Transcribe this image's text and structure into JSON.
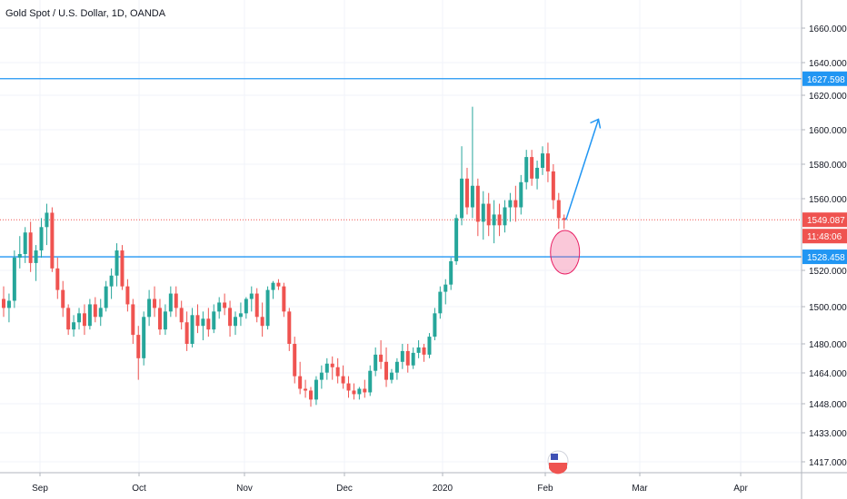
{
  "header": {
    "symbol_title": "Gold Spot / U.S. Dollar, 1D, OANDA"
  },
  "colors": {
    "up": "#26a69a",
    "down": "#ef5350",
    "level_line": "#2196f3",
    "price_line": "#ef5350",
    "grid": "#f0f3fa",
    "axis_text": "#131722"
  },
  "chart_data": {
    "type": "candlestick",
    "title": "Gold Spot / U.S. Dollar, 1D, OANDA",
    "x_ticks": [
      "Sep",
      "Oct",
      "Nov",
      "Dec",
      "2020",
      "Feb",
      "Mar",
      "Apr"
    ],
    "y_ticks": [
      "1660.000",
      "1640.000",
      "1620.000",
      "1600.000",
      "1580.000",
      "1560.000",
      "1520.000",
      "1500.000",
      "1480.000",
      "1464.000",
      "1448.000",
      "1433.000",
      "1417.000"
    ],
    "price_labels": [
      {
        "value": "1627.598",
        "kind": "level"
      },
      {
        "value": "1549.087",
        "kind": "last"
      },
      {
        "value": "11:48:06",
        "kind": "countdown"
      },
      {
        "value": "1528.458",
        "kind": "level"
      }
    ],
    "horizontal_levels": [
      1627.598,
      1528.458
    ],
    "last_price": 1549.087,
    "candles": [
      [
        1505,
        1512,
        1495,
        1500
      ],
      [
        1500,
        1508,
        1492,
        1504
      ],
      [
        1504,
        1532,
        1500,
        1528
      ],
      [
        1528,
        1540,
        1522,
        1530
      ],
      [
        1530,
        1545,
        1525,
        1542
      ],
      [
        1542,
        1548,
        1520,
        1525
      ],
      [
        1525,
        1535,
        1515,
        1532
      ],
      [
        1532,
        1550,
        1528,
        1545
      ],
      [
        1545,
        1558,
        1535,
        1553
      ],
      [
        1553,
        1556,
        1520,
        1522
      ],
      [
        1522,
        1528,
        1505,
        1510
      ],
      [
        1510,
        1515,
        1495,
        1500
      ],
      [
        1500,
        1502,
        1485,
        1488
      ],
      [
        1488,
        1496,
        1484,
        1492
      ],
      [
        1492,
        1500,
        1488,
        1497
      ],
      [
        1497,
        1502,
        1485,
        1490
      ],
      [
        1490,
        1505,
        1488,
        1502
      ],
      [
        1502,
        1506,
        1492,
        1495
      ],
      [
        1495,
        1505,
        1490,
        1500
      ],
      [
        1500,
        1515,
        1498,
        1512
      ],
      [
        1512,
        1522,
        1505,
        1518
      ],
      [
        1518,
        1536,
        1512,
        1532
      ],
      [
        1532,
        1535,
        1510,
        1512
      ],
      [
        1512,
        1516,
        1498,
        1502
      ],
      [
        1502,
        1505,
        1480,
        1485
      ],
      [
        1485,
        1490,
        1460,
        1472
      ],
      [
        1472,
        1498,
        1468,
        1495
      ],
      [
        1495,
        1510,
        1490,
        1505
      ],
      [
        1505,
        1512,
        1495,
        1500
      ],
      [
        1500,
        1505,
        1485,
        1488
      ],
      [
        1488,
        1502,
        1485,
        1498
      ],
      [
        1498,
        1512,
        1495,
        1508
      ],
      [
        1508,
        1512,
        1495,
        1500
      ],
      [
        1500,
        1504,
        1488,
        1492
      ],
      [
        1492,
        1498,
        1476,
        1480
      ],
      [
        1480,
        1500,
        1478,
        1496
      ],
      [
        1496,
        1502,
        1486,
        1490
      ],
      [
        1490,
        1498,
        1482,
        1494
      ],
      [
        1494,
        1500,
        1484,
        1488
      ],
      [
        1488,
        1502,
        1486,
        1498
      ],
      [
        1498,
        1506,
        1494,
        1503
      ],
      [
        1503,
        1508,
        1496,
        1500
      ],
      [
        1500,
        1504,
        1484,
        1490
      ],
      [
        1490,
        1498,
        1485,
        1495
      ],
      [
        1495,
        1503,
        1490,
        1497
      ],
      [
        1497,
        1506,
        1494,
        1505
      ],
      [
        1505,
        1512,
        1498,
        1508
      ],
      [
        1508,
        1511,
        1492,
        1495
      ],
      [
        1495,
        1503,
        1484,
        1490
      ],
      [
        1490,
        1512,
        1488,
        1510
      ],
      [
        1510,
        1515,
        1505,
        1514
      ],
      [
        1514,
        1516,
        1510,
        1512
      ],
      [
        1512,
        1514,
        1495,
        1498
      ],
      [
        1498,
        1500,
        1476,
        1480
      ],
      [
        1480,
        1484,
        1458,
        1462
      ],
      [
        1462,
        1470,
        1452,
        1455
      ],
      [
        1455,
        1460,
        1450,
        1454
      ],
      [
        1454,
        1456,
        1445,
        1449
      ],
      [
        1449,
        1462,
        1446,
        1460
      ],
      [
        1460,
        1468,
        1455,
        1464
      ],
      [
        1464,
        1472,
        1460,
        1469
      ],
      [
        1469,
        1473,
        1460,
        1467
      ],
      [
        1467,
        1472,
        1458,
        1462
      ],
      [
        1462,
        1468,
        1455,
        1458
      ],
      [
        1458,
        1462,
        1450,
        1454
      ],
      [
        1454,
        1458,
        1449,
        1452
      ],
      [
        1452,
        1456,
        1449,
        1455
      ],
      [
        1455,
        1460,
        1450,
        1453
      ],
      [
        1453,
        1468,
        1451,
        1465
      ],
      [
        1465,
        1478,
        1462,
        1474
      ],
      [
        1474,
        1482,
        1466,
        1470
      ],
      [
        1470,
        1478,
        1456,
        1460
      ],
      [
        1460,
        1466,
        1458,
        1464
      ],
      [
        1464,
        1472,
        1460,
        1470
      ],
      [
        1470,
        1480,
        1466,
        1476
      ],
      [
        1476,
        1480,
        1464,
        1468
      ],
      [
        1468,
        1478,
        1466,
        1475
      ],
      [
        1475,
        1482,
        1472,
        1478
      ],
      [
        1478,
        1480,
        1470,
        1474
      ],
      [
        1474,
        1486,
        1472,
        1484
      ],
      [
        1484,
        1500,
        1482,
        1497
      ],
      [
        1497,
        1512,
        1494,
        1509
      ],
      [
        1509,
        1516,
        1502,
        1513
      ],
      [
        1513,
        1528,
        1510,
        1526
      ],
      [
        1526,
        1552,
        1524,
        1550
      ],
      [
        1550,
        1590,
        1546,
        1572
      ],
      [
        1572,
        1578,
        1552,
        1556
      ],
      [
        1556,
        1612,
        1550,
        1568
      ],
      [
        1568,
        1572,
        1540,
        1548
      ],
      [
        1548,
        1565,
        1538,
        1558
      ],
      [
        1558,
        1564,
        1540,
        1546
      ],
      [
        1546,
        1560,
        1536,
        1552
      ],
      [
        1552,
        1558,
        1540,
        1546
      ],
      [
        1546,
        1560,
        1542,
        1556
      ],
      [
        1556,
        1564,
        1548,
        1560
      ],
      [
        1560,
        1568,
        1548,
        1556
      ],
      [
        1556,
        1574,
        1552,
        1570
      ],
      [
        1570,
        1588,
        1566,
        1584
      ],
      [
        1584,
        1588,
        1568,
        1572
      ],
      [
        1572,
        1582,
        1566,
        1578
      ],
      [
        1578,
        1590,
        1574,
        1586
      ],
      [
        1586,
        1592,
        1570,
        1576
      ],
      [
        1576,
        1580,
        1555,
        1560
      ],
      [
        1560,
        1564,
        1544,
        1550
      ],
      [
        1550,
        1552,
        1544,
        1549
      ]
    ],
    "annotations": [
      {
        "type": "arrow",
        "from": [
          104,
          1552
        ],
        "to": [
          107,
          1605
        ]
      },
      {
        "type": "ellipse",
        "center": [
          104,
          1530
        ]
      }
    ]
  }
}
